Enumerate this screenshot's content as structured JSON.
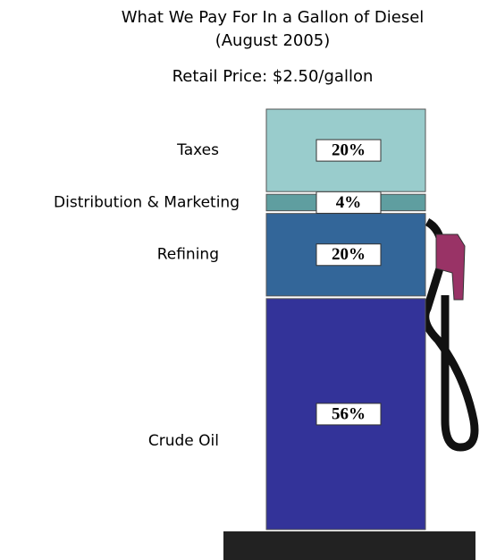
{
  "chart_data": {
    "type": "stacked-bar",
    "title": "What We Pay For In a Gallon of Diesel",
    "subtitle": "(August 2005)",
    "annotation": "Retail Price: $2.50/gallon",
    "categories": [
      "Taxes",
      "Distribution & Marketing",
      "Refining",
      "Crude Oil"
    ],
    "values": [
      20,
      4,
      20,
      56
    ],
    "value_labels": [
      "20%",
      "4%",
      "20%",
      "56%"
    ],
    "colors": [
      "#99cccc",
      "#5f9ea0",
      "#336699",
      "#333399"
    ]
  }
}
